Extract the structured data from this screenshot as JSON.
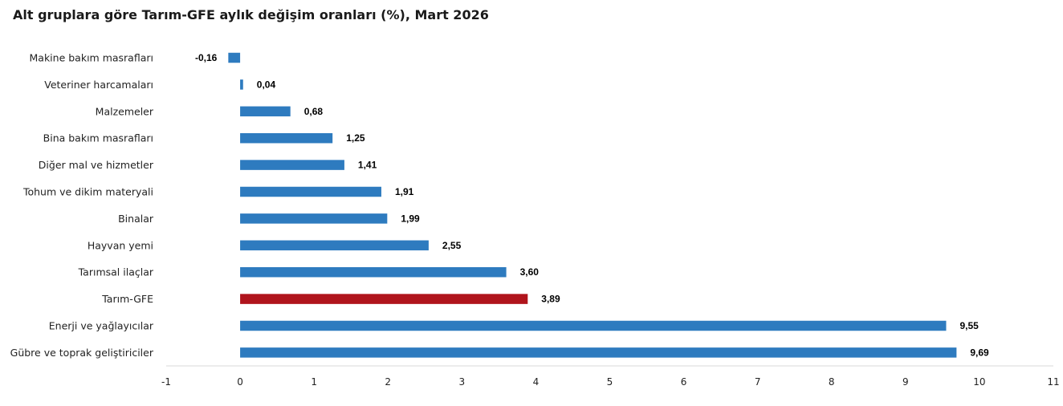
{
  "chart_data": {
    "type": "bar",
    "orientation": "horizontal",
    "title": "Alt gruplara göre Tarım-GFE aylık değişim oranları (%), Mart 2026",
    "categories": [
      "Makine bakım masrafları",
      "Veteriner harcamaları",
      "Malzemeler",
      "Bina bakım masrafları",
      "Diğer mal ve hizmetler",
      "Tohum ve dikim materyali",
      "Binalar",
      "Hayvan yemi",
      "Tarımsal ilaçlar",
      "Tarım-GFE",
      "Enerji  ve yağlayıcılar",
      "Gübre ve toprak geliştiriciler"
    ],
    "values": [
      -0.16,
      0.04,
      0.68,
      1.25,
      1.41,
      1.91,
      1.99,
      2.55,
      3.6,
      3.89,
      9.55,
      9.69
    ],
    "value_labels": [
      "-0,16",
      "0,04",
      "0,68",
      "1,25",
      "1,41",
      "1,91",
      "1,99",
      "2,55",
      "3,60",
      "3,89",
      "9,55",
      "9,69"
    ],
    "highlight_category": "Tarım-GFE",
    "colors": {
      "default": "#2e7bbf",
      "highlight": "#b0141c"
    },
    "xlim": [
      -1,
      11
    ],
    "xticks": [
      -1,
      0,
      1,
      2,
      3,
      4,
      5,
      6,
      7,
      8,
      9,
      10,
      11
    ],
    "grid": false,
    "legend": "none"
  }
}
